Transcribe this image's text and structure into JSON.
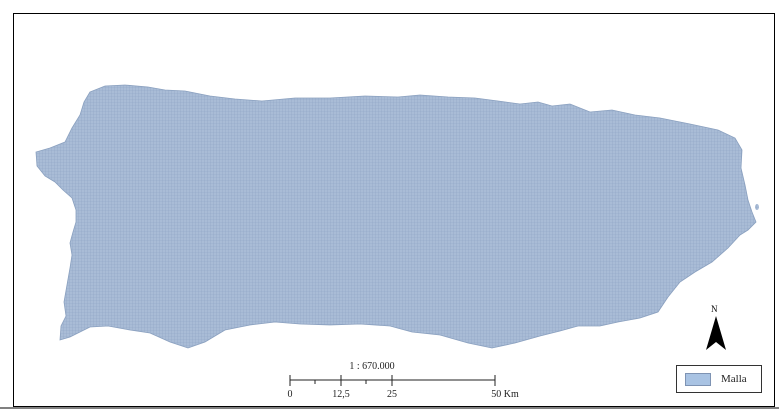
{
  "map": {
    "fill_color": "#a9bcd6",
    "grid_color": "#8ea4c4",
    "outline_color": "#8aa0bf"
  },
  "scale_bar": {
    "ratio_label": "1 : 670.000",
    "ticks": [
      "0",
      "12,5",
      "25",
      "50 Km"
    ]
  },
  "north_arrow": {
    "label": "N",
    "icon": "north-arrow-icon"
  },
  "legend": {
    "items": [
      {
        "label": "Malla",
        "color": "#a9c3e3"
      }
    ]
  }
}
